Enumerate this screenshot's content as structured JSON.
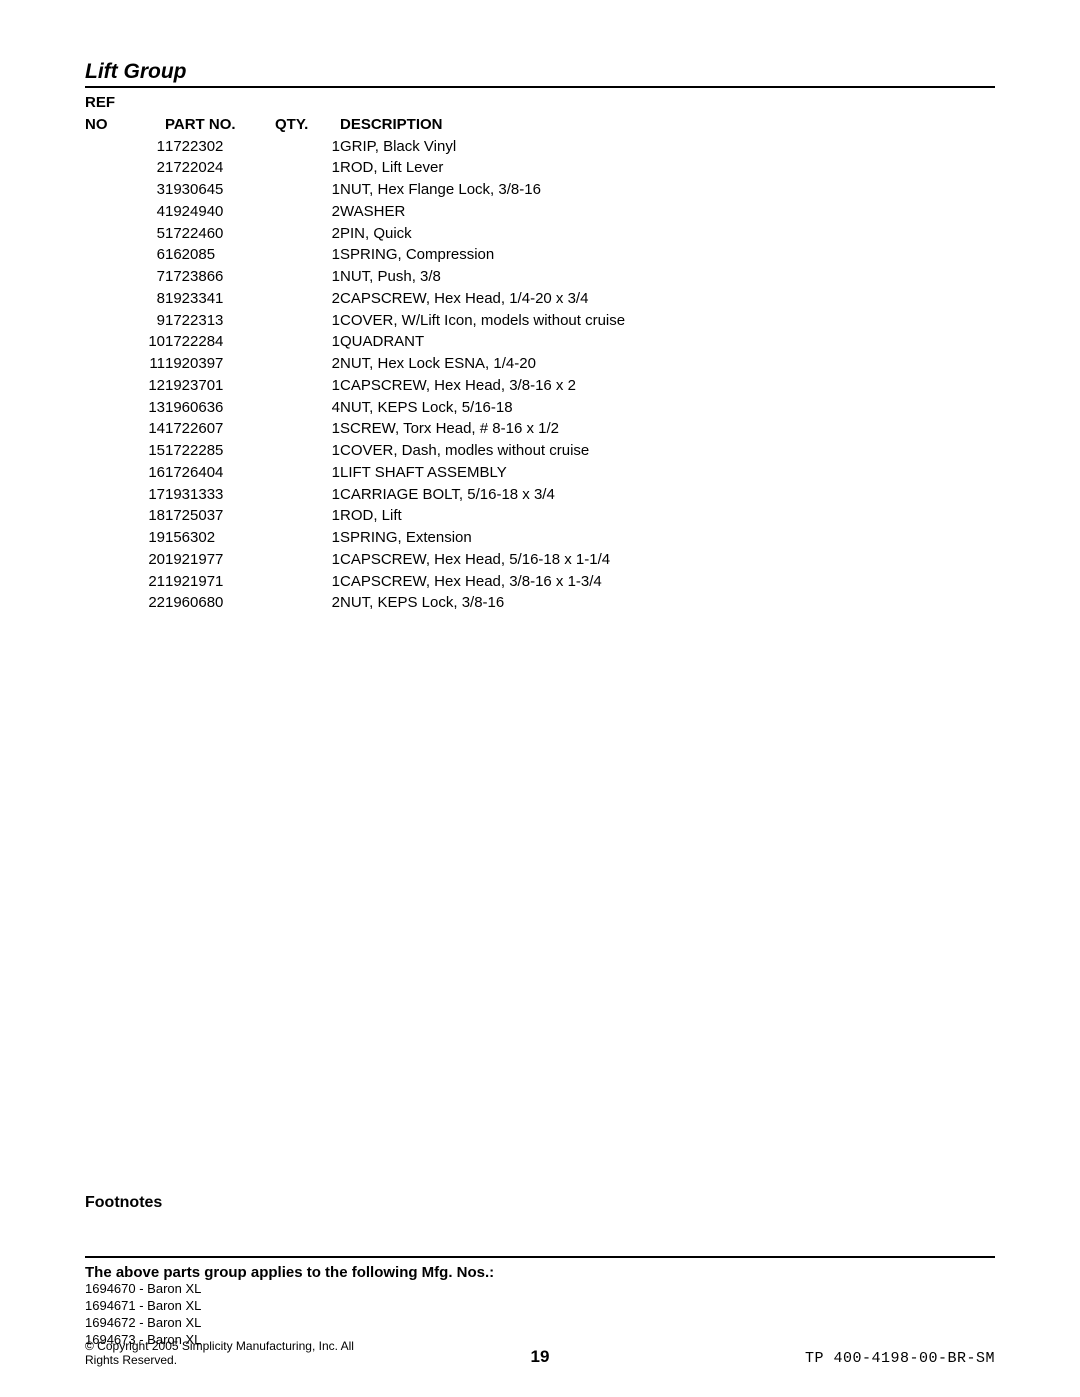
{
  "title": "Lift Group",
  "columns": {
    "ref": "REF NO",
    "part": "PART NO.",
    "qty": "QTY.",
    "desc": "DESCRIPTION"
  },
  "rows": [
    {
      "ref": "1",
      "part": "1722302",
      "qty": "1",
      "desc": "GRIP, Black Vinyl"
    },
    {
      "ref": "2",
      "part": "1722024",
      "qty": "1",
      "desc": "ROD, Lift Lever"
    },
    {
      "ref": "3",
      "part": "1930645",
      "qty": "1",
      "desc": "NUT, Hex Flange Lock, 3/8-16"
    },
    {
      "ref": "4",
      "part": "1924940",
      "qty": "2",
      "desc": "WASHER"
    },
    {
      "ref": "5",
      "part": "1722460",
      "qty": "2",
      "desc": "PIN, Quick"
    },
    {
      "ref": "6",
      "part": "162085",
      "qty": "1",
      "desc": "SPRING, Compression"
    },
    {
      "ref": "7",
      "part": "1723866",
      "qty": "1",
      "desc": "NUT, Push, 3/8"
    },
    {
      "ref": "8",
      "part": "1923341",
      "qty": "2",
      "desc": "CAPSCREW, Hex Head, 1/4-20 x 3/4"
    },
    {
      "ref": "9",
      "part": "1722313",
      "qty": "1",
      "desc": "COVER, W/Lift Icon, models without cruise"
    },
    {
      "ref": "10",
      "part": "1722284",
      "qty": "1",
      "desc": "QUADRANT"
    },
    {
      "ref": "11",
      "part": "1920397",
      "qty": "2",
      "desc": "NUT, Hex Lock ESNA, 1/4-20"
    },
    {
      "ref": "12",
      "part": "1923701",
      "qty": "1",
      "desc": "CAPSCREW, Hex Head, 3/8-16 x 2"
    },
    {
      "ref": "13",
      "part": "1960636",
      "qty": "4",
      "desc": "NUT, KEPS Lock, 5/16-18"
    },
    {
      "ref": "14",
      "part": "1722607",
      "qty": "1",
      "desc": "SCREW, Torx Head, # 8-16 x 1/2"
    },
    {
      "ref": "15",
      "part": "1722285",
      "qty": "1",
      "desc": "COVER, Dash, modles without cruise"
    },
    {
      "ref": "16",
      "part": "1726404",
      "qty": "1",
      "desc": "LIFT SHAFT ASSEMBLY"
    },
    {
      "ref": "17",
      "part": "1931333",
      "qty": "1",
      "desc": "CARRIAGE BOLT, 5/16-18 x 3/4"
    },
    {
      "ref": "18",
      "part": "1725037",
      "qty": "1",
      "desc": "ROD, Lift"
    },
    {
      "ref": "19",
      "part": "156302",
      "qty": "1",
      "desc": "SPRING, Extension"
    },
    {
      "ref": "20",
      "part": "1921977",
      "qty": "1",
      "desc": "CAPSCREW, Hex Head, 5/16-18 x 1-1/4"
    },
    {
      "ref": "21",
      "part": "1921971",
      "qty": "1",
      "desc": "CAPSCREW, Hex Head, 3/8-16 x 1-3/4"
    },
    {
      "ref": "22",
      "part": "1960680",
      "qty": "2",
      "desc": "NUT, KEPS Lock, 3/8-16"
    }
  ],
  "footnotes_label": "Footnotes",
  "applies_label": "The above parts group applies to the following Mfg. Nos.:",
  "mfg_nos": [
    "1694670 - Baron XL",
    "1694671 - Baron XL",
    "1694672 - Baron XL",
    "1694673 - Baron XL"
  ],
  "footer": {
    "copyright": "© Copyright 2005 Simplicity Manufacturing, Inc. All Rights Reserved.",
    "page": "19",
    "docid": "TP 400-4198-00-BR-SM"
  }
}
